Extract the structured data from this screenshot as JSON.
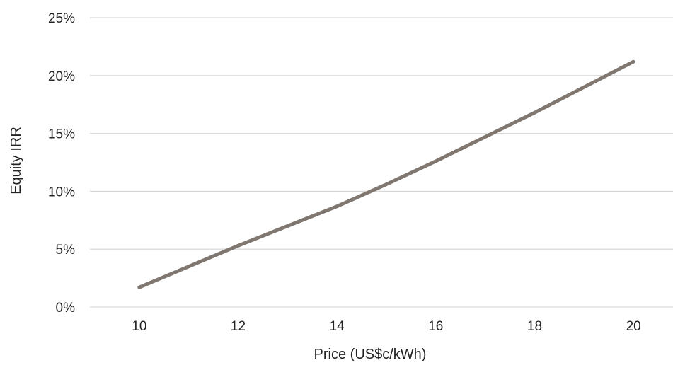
{
  "chart_data": {
    "type": "line",
    "title": "",
    "xlabel": "Price (US$c/kWh)",
    "ylabel": "Equity IRR",
    "x_ticks": [
      10,
      12,
      14,
      16,
      18,
      20
    ],
    "y_ticks": [
      0,
      5,
      10,
      15,
      20,
      25
    ],
    "y_tick_labels": [
      "0%",
      "5%",
      "10%",
      "15%",
      "20%",
      "25%"
    ],
    "xlim": [
      9,
      20.8
    ],
    "ylim": [
      0,
      25
    ],
    "grid": "horizontal",
    "legend": "none",
    "series": [
      {
        "color": "#7f7770",
        "x": [
          10,
          11,
          12,
          13,
          14,
          15,
          16,
          17,
          18,
          19,
          20
        ],
        "y": [
          1.7,
          3.5,
          5.3,
          7.0,
          8.7,
          10.6,
          12.6,
          14.7,
          16.8,
          19.0,
          21.2
        ]
      }
    ]
  }
}
